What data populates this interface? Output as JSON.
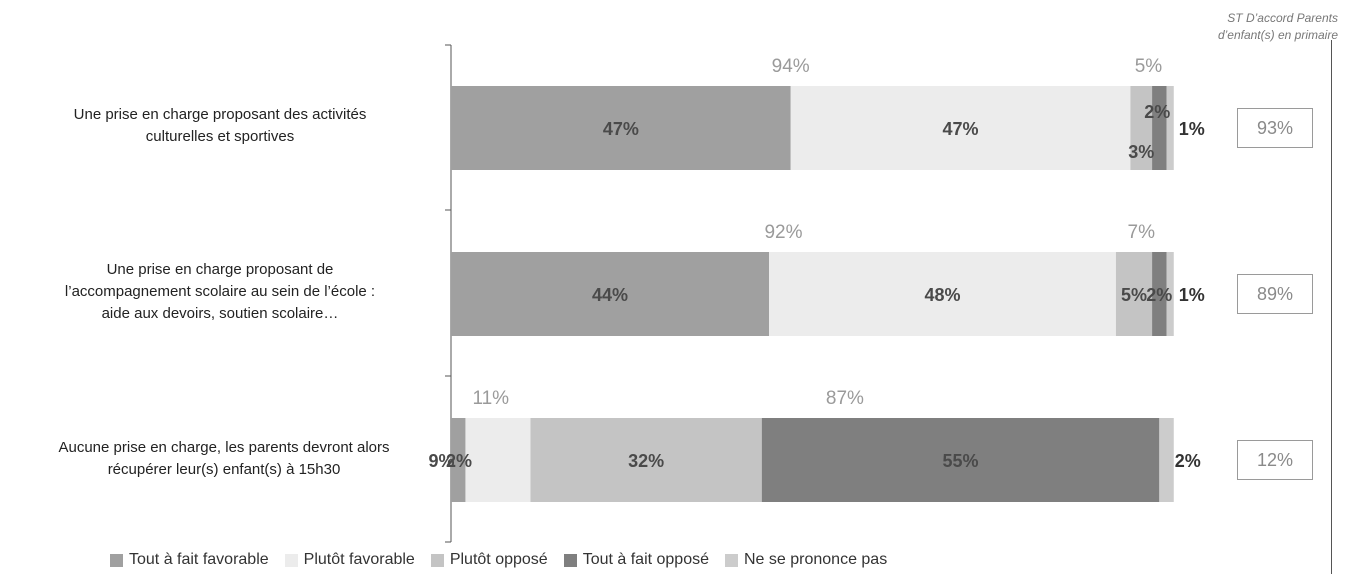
{
  "side_header": "ST D’accord Parents\nd’enfant(s) en primaire",
  "colors": {
    "tout_favorable": "#a0a0a0",
    "plutot_favorable": "#ececec",
    "plutot_oppose": "#c4c4c4",
    "tout_oppose": "#7f7f7f",
    "nsp": "#cccccc"
  },
  "chart_data": {
    "type": "bar",
    "orientation": "horizontal",
    "stacked": true,
    "categories": [
      "Une prise en charge proposant des activités\nculturelles et sportives",
      "Une prise en charge proposant de\nl’accompagnement scolaire au sein de l’école :\naide aux devoirs, soutien scolaire…",
      "Aucune prise en charge, les parents devront alors\nrécupérer leur(s) enfant(s) à 15h30"
    ],
    "series": [
      {
        "name": "Tout à fait favorable",
        "values": [
          47,
          44,
          2
        ]
      },
      {
        "name": "Plutôt favorable",
        "values": [
          47,
          48,
          9
        ]
      },
      {
        "name": "Plutôt opposé",
        "values": [
          3,
          5,
          32
        ]
      },
      {
        "name": "Tout à fait opposé",
        "values": [
          2,
          2,
          55
        ]
      },
      {
        "name": "Ne se prononce pas",
        "values": [
          1,
          1,
          2
        ]
      }
    ],
    "data_labels": [
      [
        "47%",
        "47%",
        "3%",
        "2%",
        "1%"
      ],
      [
        "44%",
        "48%",
        "5%",
        "2%",
        "1%"
      ],
      [
        "2%",
        "9%",
        "32%",
        "55%",
        "2%"
      ]
    ],
    "favorable_totals": [
      "94%",
      "92%",
      "11%"
    ],
    "opposed_totals": [
      "5%",
      "7%",
      "87%"
    ],
    "side_values": [
      "93%",
      "89%",
      "12%"
    ],
    "xlim": [
      0,
      101
    ],
    "legend": "bottom"
  }
}
